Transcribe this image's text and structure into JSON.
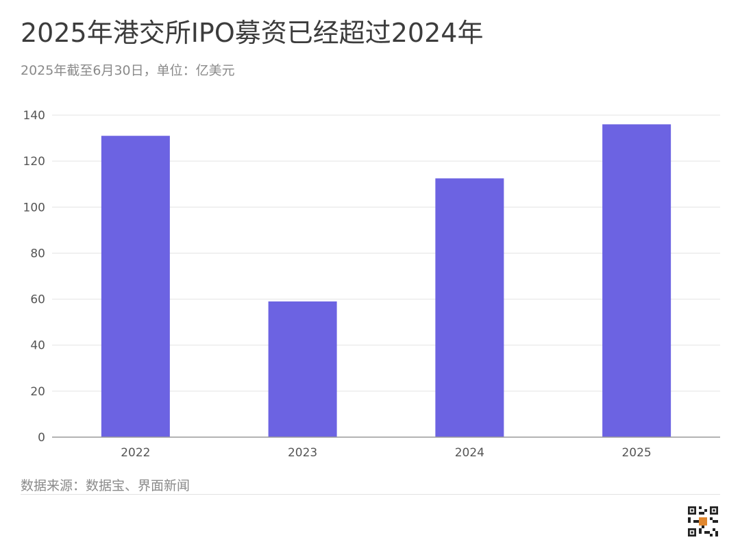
{
  "header": {
    "title": "2025年港交所IPO募资已经超过2024年",
    "subtitle": "2025年截至6月30日，单位：亿美元"
  },
  "footer": {
    "source": "数据来源：数据宝、界面新闻"
  },
  "colors": {
    "bar": "#6c63e2",
    "grid": "#e3e3e3",
    "axis": "#9a9a9a"
  },
  "chart_data": {
    "type": "bar",
    "categories": [
      "2022",
      "2023",
      "2024",
      "2025"
    ],
    "values": [
      131,
      59,
      112.5,
      136
    ],
    "ylim": [
      0,
      140
    ],
    "yticks": [
      0,
      20,
      40,
      60,
      80,
      100,
      120,
      140
    ],
    "grid": true,
    "legend": "none"
  }
}
